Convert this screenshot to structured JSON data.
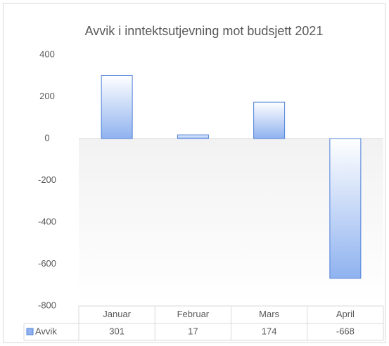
{
  "chart_data": {
    "type": "bar",
    "title": "Avvik i inntektsutjevning mot budsjett 2021",
    "categories": [
      "Januar",
      "Februar",
      "Mars",
      "April"
    ],
    "series": [
      {
        "name": "Avvik",
        "color": "#8fb2ef",
        "values": [
          301,
          17,
          174,
          -668
        ]
      }
    ],
    "ylim": [
      -800,
      400
    ],
    "yticks": [
      -800,
      -600,
      -400,
      -200,
      0,
      200,
      400
    ],
    "grid": false
  }
}
